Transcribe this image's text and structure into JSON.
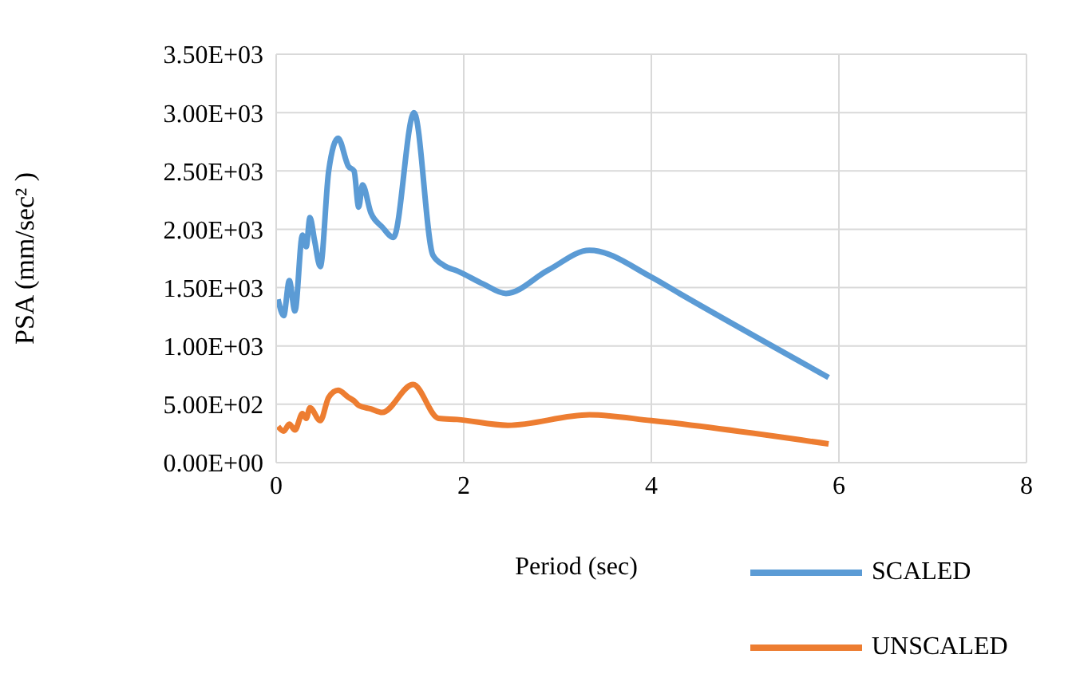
{
  "chart_data": {
    "type": "line",
    "xlabel": "Period (sec)",
    "ylabel": "PSA (mm/sec² )",
    "xlim": [
      0,
      8
    ],
    "xticks": [
      0,
      2,
      4,
      6,
      8
    ],
    "ylim": [
      0,
      3500
    ],
    "yticks": [
      {
        "value": 0,
        "label": "0.00E+00"
      },
      {
        "value": 500,
        "label": "5.00E+02"
      },
      {
        "value": 1000,
        "label": "1.00E+03"
      },
      {
        "value": 1500,
        "label": "1.50E+03"
      },
      {
        "value": 2000,
        "label": "2.00E+03"
      },
      {
        "value": 2500,
        "label": "2.50E+03"
      },
      {
        "value": 3000,
        "label": "3.00E+03"
      },
      {
        "value": 3500,
        "label": "3.50E+03"
      }
    ],
    "grid": true,
    "legend": "bottom right",
    "marker": "none",
    "line_style": "solid",
    "series": [
      {
        "name": "SCALED",
        "color": "#5b9bd5",
        "x": [
          0.02,
          0.08,
          0.14,
          0.2,
          0.28,
          0.32,
          0.36,
          0.41,
          0.47,
          0.56,
          0.66,
          0.77,
          0.83,
          0.88,
          0.92,
          1.01,
          1.13,
          1.25,
          1.47,
          1.67,
          1.79,
          1.94,
          2.21,
          2.45,
          2.9,
          3.34,
          4.0,
          4.3,
          5.89
        ],
        "values": [
          1400,
          1260,
          1560,
          1300,
          1950,
          1850,
          2100,
          1900,
          1680,
          2500,
          2780,
          2540,
          2500,
          2190,
          2380,
          2140,
          2020,
          1930,
          3000,
          1780,
          1690,
          1640,
          1530,
          1450,
          1650,
          1820,
          1590,
          1450,
          730
        ]
      },
      {
        "name": "UNSCALED",
        "color": "#ed7d31",
        "x": [
          0.02,
          0.08,
          0.14,
          0.2,
          0.28,
          0.32,
          0.36,
          0.47,
          0.56,
          0.66,
          0.77,
          0.83,
          0.88,
          1.01,
          1.13,
          1.46,
          1.73,
          1.93,
          2.47,
          3.34,
          4.0,
          5.89
        ],
        "values": [
          310,
          270,
          330,
          280,
          420,
          380,
          470,
          360,
          560,
          620,
          560,
          530,
          490,
          460,
          430,
          670,
          380,
          370,
          320,
          410,
          360,
          160
        ]
      }
    ]
  }
}
